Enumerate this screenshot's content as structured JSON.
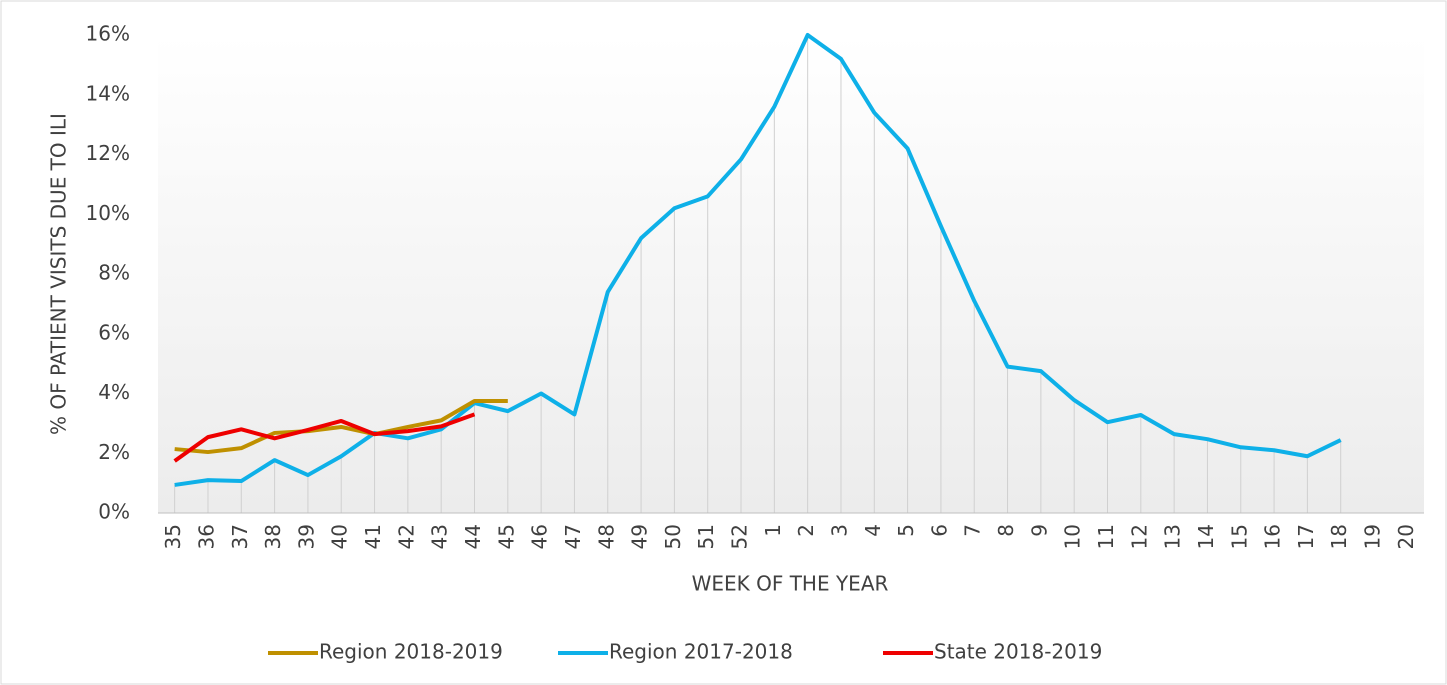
{
  "chart_data": {
    "type": "line",
    "xlabel": "WEEK OF THE YEAR",
    "ylabel": "% OF PATIENT VISITS DUE TO ILI",
    "categories": [
      "35",
      "36",
      "37",
      "38",
      "39",
      "40",
      "41",
      "42",
      "43",
      "44",
      "45",
      "46",
      "47",
      "48",
      "49",
      "50",
      "51",
      "52",
      "1",
      "2",
      "3",
      "4",
      "5",
      "6",
      "7",
      "8",
      "9",
      "10",
      "11",
      "12",
      "13",
      "14",
      "15",
      "16",
      "17",
      "18",
      "19",
      "20"
    ],
    "series": [
      {
        "name": "Region 2018-2019",
        "color": "#bf9000",
        "values": [
          2.14,
          2.04,
          2.17,
          2.68,
          2.74,
          2.88,
          2.64,
          2.88,
          3.1,
          3.75,
          3.75,
          null,
          null,
          null,
          null,
          null,
          null,
          null,
          null,
          null,
          null,
          null,
          null,
          null,
          null,
          null,
          null,
          null,
          null,
          null,
          null,
          null,
          null,
          null,
          null,
          null,
          null,
          null
        ]
      },
      {
        "name": "Region 2017-2018",
        "color": "#0eb0e8",
        "values": [
          0.94,
          1.1,
          1.07,
          1.77,
          1.27,
          1.9,
          2.68,
          2.5,
          2.8,
          3.68,
          3.41,
          4.0,
          3.3,
          7.4,
          9.2,
          10.2,
          10.6,
          11.84,
          13.6,
          16.0,
          15.2,
          13.4,
          12.2,
          9.6,
          7.1,
          4.9,
          4.75,
          3.78,
          3.04,
          3.28,
          2.64,
          2.47,
          2.2,
          2.1,
          1.9,
          2.44,
          null,
          null
        ]
      },
      {
        "name": "State 2018-2019",
        "color": "#ee0000",
        "values": [
          1.74,
          2.54,
          2.8,
          2.5,
          2.78,
          3.08,
          2.64,
          2.74,
          2.9,
          3.3,
          null,
          null,
          null,
          null,
          null,
          null,
          null,
          null,
          null,
          null,
          null,
          null,
          null,
          null,
          null,
          null,
          null,
          null,
          null,
          null,
          null,
          null,
          null,
          null,
          null,
          null,
          null,
          null
        ]
      }
    ],
    "ylim": [
      0,
      16
    ],
    "yticks": [
      {
        "value": 0,
        "label": "0%"
      },
      {
        "value": 2,
        "label": "2%"
      },
      {
        "value": 4,
        "label": "4%"
      },
      {
        "value": 6,
        "label": "6%"
      },
      {
        "value": 8,
        "label": "8%"
      },
      {
        "value": 10,
        "label": "10%"
      },
      {
        "value": 12,
        "label": "12%"
      },
      {
        "value": 14,
        "label": "14%"
      },
      {
        "value": 16,
        "label": "16%"
      }
    ],
    "legend": "bottom"
  }
}
